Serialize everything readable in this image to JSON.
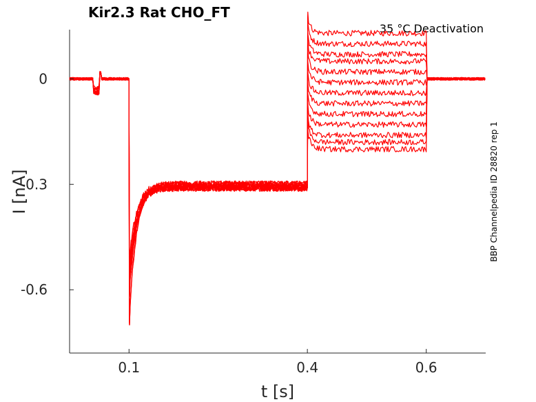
{
  "chart_data": {
    "type": "line",
    "title": "Kir2.3  Rat  CHO_FT",
    "annotation": "35 °C  Deactivation",
    "side_label": "BBP Channelpedia ID 28820 rep 1",
    "xlabel": "t [s]",
    "ylabel": "I [nA]",
    "xlim": [
      0.0,
      0.7
    ],
    "ylim": [
      -0.78,
      0.14
    ],
    "x_ticks": [
      0.1,
      0.4,
      0.6
    ],
    "x_tick_labels": [
      "0.1",
      "0.4",
      "0.6"
    ],
    "y_ticks": [
      0,
      -0.3,
      -0.6
    ],
    "y_tick_labels": [
      "0",
      "-0.3",
      "-0.6"
    ],
    "grid": false,
    "color": "#ff0000",
    "step_times": [
      0.04,
      0.05,
      0.1,
      0.4,
      0.6
    ],
    "prepulse_dip": [
      -0.08,
      -0.07,
      -0.06,
      -0.05
    ],
    "peak_current": [
      -0.7,
      -0.62,
      -0.58,
      -0.55,
      -0.52
    ],
    "plateau_current": [
      -0.3,
      -0.31,
      -0.31,
      -0.3,
      -0.31
    ],
    "test_step_current": [
      0.13,
      0.1,
      0.07,
      0.05,
      0.02,
      -0.01,
      -0.04,
      -0.07,
      -0.1,
      -0.13,
      -0.16,
      -0.18,
      -0.2
    ]
  }
}
